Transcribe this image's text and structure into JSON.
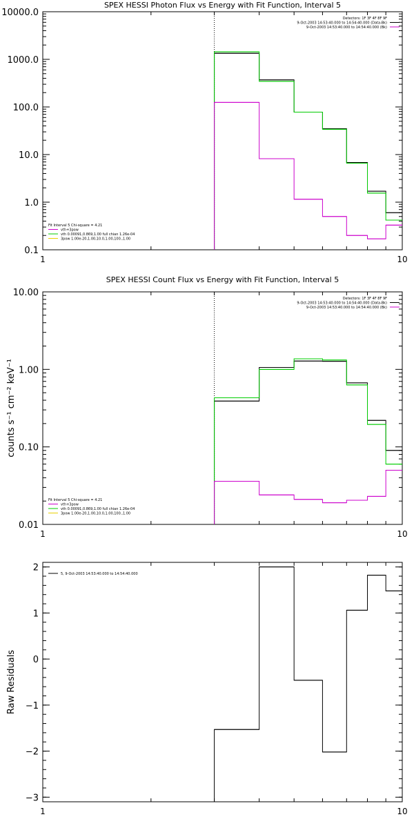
{
  "chart_data": [
    {
      "type": "line",
      "title": "SPEX HESSI Photon Flux vs Energy with Fit Function, Interval 5",
      "xlim": [
        1,
        10
      ],
      "ylim": [
        0.1,
        10000
      ],
      "xscale": "log",
      "yscale": "log",
      "grid": false,
      "x_ticks": [
        {
          "v": 1,
          "label": "1"
        },
        {
          "v": 10,
          "label": "10"
        }
      ],
      "y_ticks": [
        {
          "v": 0.1,
          "label": "0.1"
        },
        {
          "v": 1,
          "label": "1.0"
        },
        {
          "v": 10,
          "label": "10.0"
        },
        {
          "v": 100,
          "label": "100.0"
        },
        {
          "v": 1000,
          "label": "1000.0"
        },
        {
          "v": 10000,
          "label": "10000.0"
        }
      ],
      "vline_x": 3,
      "legend_top_right": [
        {
          "text": "Detectors: 1F 3F 4F 8F 9F",
          "color": ""
        },
        {
          "text": "9-Oct-2003 14:53:40.000 to 14:54:40.000 (Data-Bk)",
          "color": "#000000"
        },
        {
          "text": "9-Oct-2003 14:53:40.000 to 14:54:40.000 (Bk)",
          "color": "#cc00cc"
        }
      ],
      "legend_bottom_left": [
        {
          "text": "Fit Interval 5   Chi-square = 4.21",
          "color": ""
        },
        {
          "text": "vth+3pow",
          "color": "#cc00cc"
        },
        {
          "text": "vth 0.00091,0.869,1.00  full chian 1.26e-04",
          "color": "#00cc00"
        },
        {
          "text": "3pow 1.00e-20,1.00,10.0,1.00,100.,1.00",
          "color": "#e8d000"
        }
      ],
      "series": [
        {
          "color": "#000000",
          "edges": [
            3,
            4,
            5,
            6,
            7,
            8,
            9,
            10
          ],
          "values": [
            1340,
            370,
            78,
            35,
            6.8,
            1.7,
            0.6
          ]
        },
        {
          "color": "#00cc00",
          "edges": [
            3,
            4,
            5,
            6,
            7,
            8,
            9,
            10
          ],
          "values": [
            1440,
            345,
            78,
            34,
            6.6,
            1.55,
            0.42
          ]
        },
        {
          "color": "#cc00cc",
          "edges": [
            3,
            4,
            5,
            6,
            7,
            8,
            9,
            10
          ],
          "values": [
            125,
            8.2,
            1.15,
            0.5,
            0.2,
            0.17,
            0.33
          ]
        }
      ]
    },
    {
      "type": "line",
      "title": "SPEX HESSI Count Flux vs Energy with Fit Function, Interval 5",
      "ylabel": "counts s⁻¹ cm⁻² keV⁻¹",
      "xlim": [
        1,
        10
      ],
      "ylim": [
        0.01,
        10
      ],
      "xscale": "log",
      "yscale": "log",
      "grid": false,
      "x_ticks": [
        {
          "v": 1,
          "label": "1"
        },
        {
          "v": 10,
          "label": "10"
        }
      ],
      "y_ticks": [
        {
          "v": 0.01,
          "label": "0.01"
        },
        {
          "v": 0.1,
          "label": "0.10"
        },
        {
          "v": 1,
          "label": "1.00"
        },
        {
          "v": 10,
          "label": "10.00"
        }
      ],
      "vline_x": 3,
      "legend_top_right": [
        {
          "text": "Detectors: 1F 3F 4F 8F 9F",
          "color": ""
        },
        {
          "text": "9-Oct-2003 14:53:40.000 to 14:54:40.000 (Data-Bk)",
          "color": "#000000"
        },
        {
          "text": "9-Oct-2003 14:53:40.000 to 14:54:40.000 (Bk)",
          "color": "#cc00cc"
        }
      ],
      "legend_bottom_left": [
        {
          "text": "Fit Interval 5   Chi-square = 4.21",
          "color": ""
        },
        {
          "text": "vth+3pow",
          "color": "#cc00cc"
        },
        {
          "text": "vth 0.00091,0.869,1.00  full chian 1.26e-04",
          "color": "#00cc00"
        },
        {
          "text": "3pow 1.00e-20,1.00,10.0,1.00,100.,1.00",
          "color": "#e8d000"
        }
      ],
      "series": [
        {
          "color": "#000000",
          "edges": [
            3,
            4,
            5,
            6,
            7,
            8,
            9,
            10
          ],
          "values": [
            0.39,
            1.06,
            1.28,
            1.27,
            0.67,
            0.22,
            0.09
          ]
        },
        {
          "color": "#00cc00",
          "edges": [
            3,
            4,
            5,
            6,
            7,
            8,
            9,
            10
          ],
          "values": [
            0.43,
            1.0,
            1.37,
            1.32,
            0.63,
            0.195,
            0.06
          ]
        },
        {
          "color": "#cc00cc",
          "edges": [
            3,
            4,
            5,
            6,
            7,
            8,
            9,
            10
          ],
          "values": [
            0.036,
            0.024,
            0.021,
            0.019,
            0.0205,
            0.023,
            0.05
          ]
        }
      ]
    },
    {
      "type": "line",
      "title": "",
      "ylabel": "Raw Residuals",
      "xlim": [
        1,
        10
      ],
      "ylim": [
        -3.1,
        2.1
      ],
      "xscale": "log",
      "yscale": "linear",
      "grid": false,
      "x_ticks": [
        {
          "v": 1,
          "label": "1"
        },
        {
          "v": 10,
          "label": "10"
        }
      ],
      "y_ticks": [
        {
          "v": -3,
          "label": "−3"
        },
        {
          "v": -2,
          "label": "−2"
        },
        {
          "v": -1,
          "label": "−1"
        },
        {
          "v": 0,
          "label": "0"
        },
        {
          "v": 1,
          "label": "1"
        },
        {
          "v": 2,
          "label": "2"
        }
      ],
      "legend_top_left": [
        {
          "text": "5, 9-Oct-2003 14:53:40.000 to 14:54:40.000",
          "color": "#000000"
        }
      ],
      "series": [
        {
          "color": "#000000",
          "edges": [
            3,
            4,
            5,
            6,
            7,
            8,
            9,
            10
          ],
          "values": [
            -1.53,
            2.0,
            -0.46,
            -2.02,
            1.06,
            1.82,
            1.48
          ]
        }
      ]
    }
  ]
}
